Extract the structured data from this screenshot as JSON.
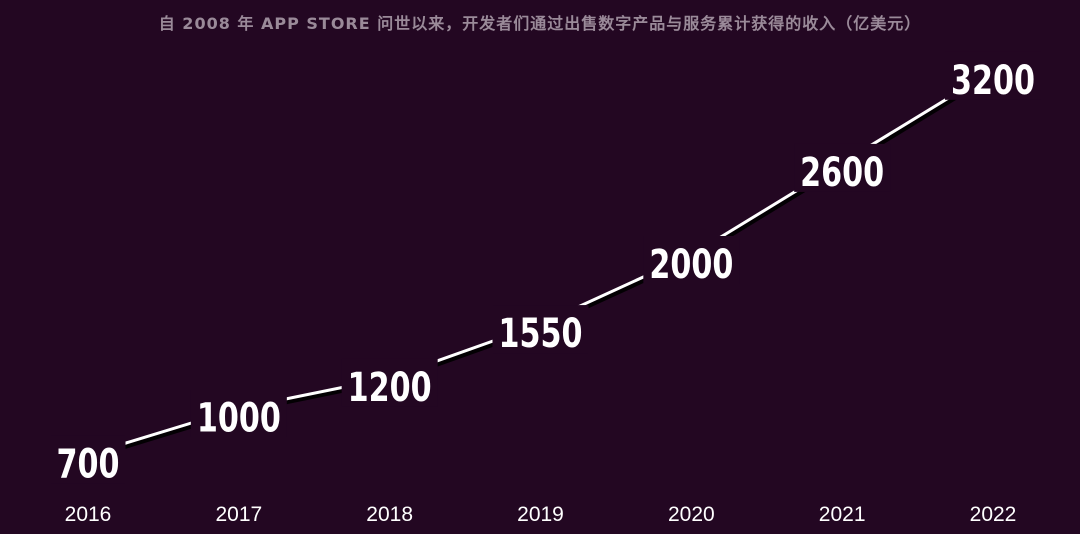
{
  "title": "自 2008 年 APP STORE 问世以来，开发者们通过出售数字产品与服务累计获得的收入（亿美元）",
  "colors": {
    "background": "#230722",
    "line": "#ffffff",
    "line_shadow": "#000000",
    "title": "#9a8a99",
    "text": "#ffffff"
  },
  "chart_data": {
    "type": "line",
    "title": "自 2008 年 APP STORE 问世以来，开发者们通过出售数字产品与服务累计获得的收入（亿美元）",
    "categories": [
      "2016",
      "2017",
      "2018",
      "2019",
      "2020",
      "2021",
      "2022"
    ],
    "values": [
      700,
      1000,
      1200,
      1550,
      2000,
      2600,
      3200
    ],
    "data_labels": [
      "700",
      "1000",
      "1200",
      "1550",
      "2000",
      "2600",
      "3200"
    ],
    "xlabel": "",
    "ylabel": "",
    "ylim": [
      0,
      3400
    ],
    "grid": false,
    "legend": "none"
  }
}
